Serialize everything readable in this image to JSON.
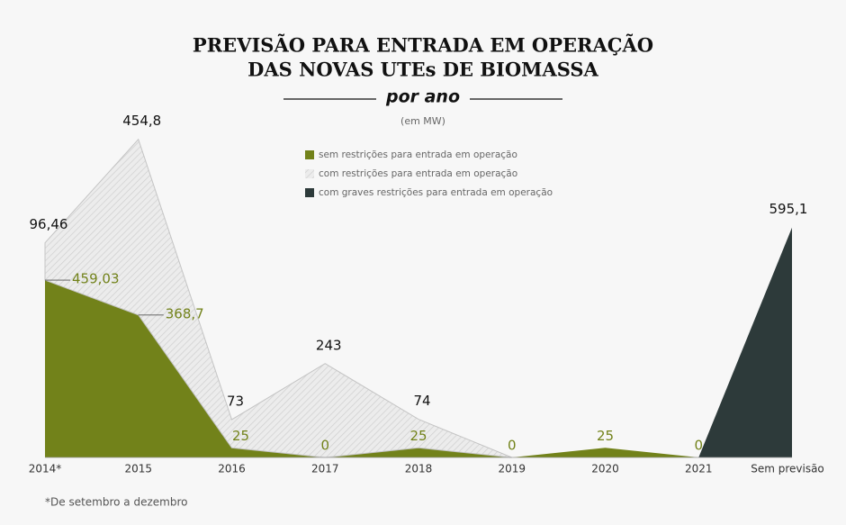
{
  "chart_data": {
    "type": "stacked-area",
    "title": [
      "PREVISÃO PARA ENTRADA EM OPERAÇÃO",
      "DAS NOVAS UTEs DE BIOMASSA"
    ],
    "subtitle": "por ano",
    "unit": "(em MW)",
    "note": "*De setembro a dezembro",
    "categories": [
      "2014*",
      "2015",
      "2016",
      "2017",
      "2018",
      "2019",
      "2020",
      "2021",
      "Sem previsão"
    ],
    "ylim": [
      0,
      1000
    ],
    "series": [
      {
        "name": "sem restrições para entrada em operação",
        "color": "#72821a",
        "values": [
          459.03,
          368.7,
          25,
          0,
          25,
          0,
          25,
          0,
          null
        ],
        "value_labels": [
          "459,03",
          "368,7",
          "25",
          "0",
          "25",
          "0",
          "25",
          "0",
          null
        ]
      },
      {
        "name": "com restrições para entrada em operação",
        "color": "#d9d9d9",
        "values": [
          96.46,
          454.8,
          73,
          243,
          74,
          0,
          null,
          null,
          null
        ],
        "value_labels": [
          "96,46",
          "454,8",
          "73",
          "243",
          "74",
          null,
          null,
          null,
          null
        ]
      },
      {
        "name": "com graves restrições para entrada em operação",
        "color": "#2d3a3a",
        "values": [
          null,
          null,
          null,
          null,
          null,
          null,
          null,
          0,
          595.1
        ],
        "value_labels": [
          null,
          null,
          null,
          null,
          null,
          null,
          null,
          null,
          "595,1"
        ]
      }
    ]
  }
}
